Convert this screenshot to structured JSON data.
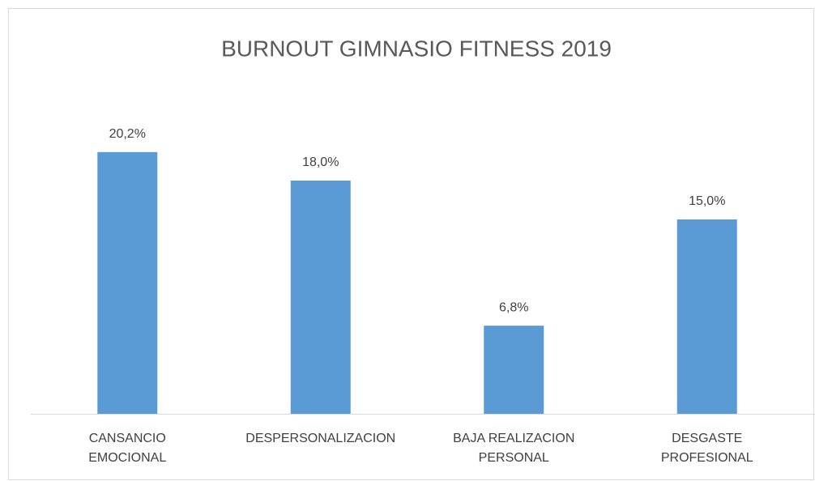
{
  "chart_data": {
    "type": "bar",
    "title": "BURNOUT GIMNASIO FITNESS 2019",
    "categories": [
      "CANSANCIO EMOCIONAL",
      "DESPERSONALIZACION",
      "BAJA REALIZACION PERSONAL",
      "DESGASTE PROFESIONAL"
    ],
    "values": [
      20.2,
      18.0,
      6.8,
      15.0
    ],
    "value_labels": [
      "20,2%",
      "18,0%",
      "6,8%",
      "15,0%"
    ],
    "color": "#5b9bd5",
    "ylim": [
      0,
      25
    ]
  }
}
